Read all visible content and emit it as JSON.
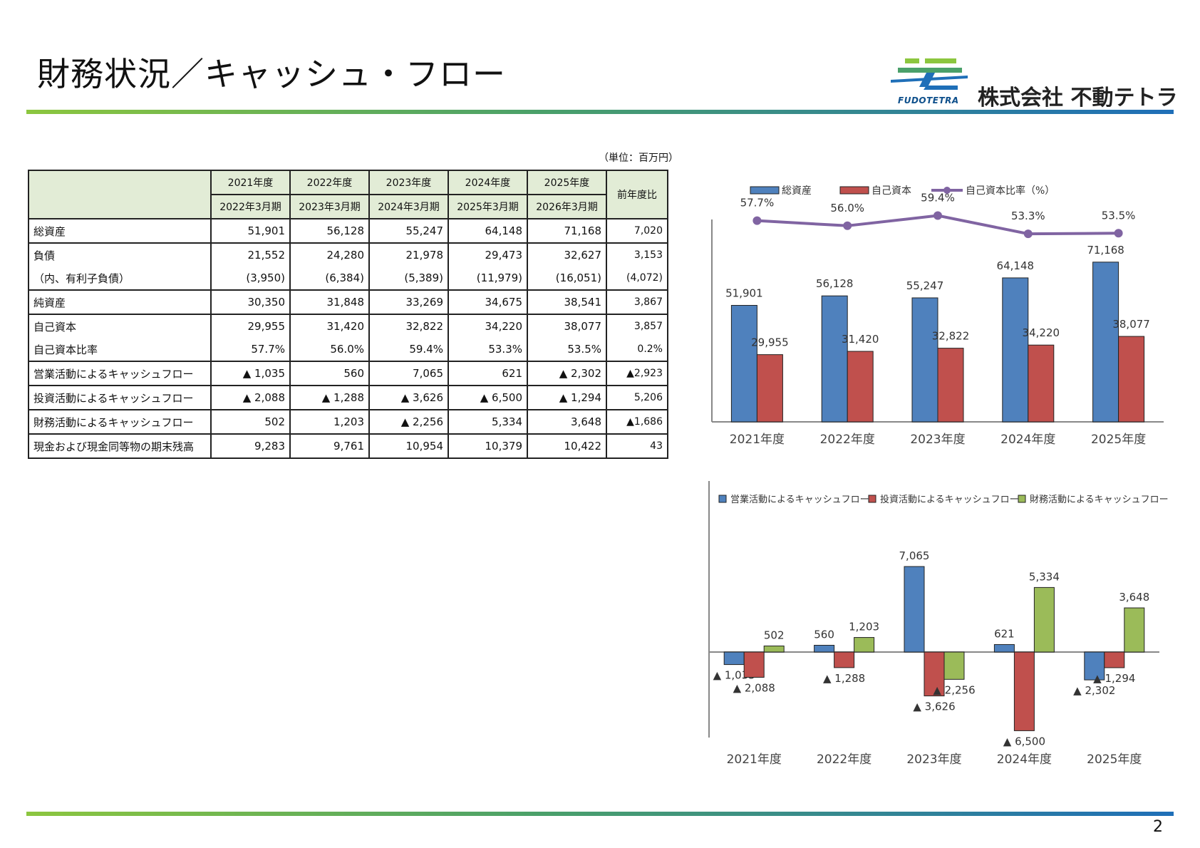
{
  "page": {
    "title": "財務状況／キャッシュ・フロー",
    "page_number": "2",
    "unit": "（単位：百万円）"
  },
  "logo": {
    "brand": "FUDOTETRA",
    "company": "株式会社 不動テトラ",
    "colors": [
      "#8cc63f",
      "#1f6fb8"
    ]
  },
  "table": {
    "header_years": [
      "2021年度",
      "2022年度",
      "2023年度",
      "2024年度",
      "2025年度"
    ],
    "header_periods": [
      "2022年3月期",
      "2023年3月期",
      "2024年3月期",
      "2025年3月期",
      "2026年3月期"
    ],
    "header_compare": "前年度比",
    "rows": [
      {
        "label": "総資産",
        "values": [
          "51,901",
          "56,128",
          "55,247",
          "64,148",
          "71,168"
        ],
        "compare": "7,020"
      },
      {
        "label": "負債",
        "values": [
          "21,552",
          "24,280",
          "21,978",
          "29,473",
          "32,627"
        ],
        "compare": "3,153"
      },
      {
        "label": "（内、有利子負債）",
        "values": [
          "(3,950)",
          "(6,384)",
          "(5,389)",
          "(11,979)",
          "(16,051)"
        ],
        "compare": "(4,072)"
      },
      {
        "label": "純資産",
        "values": [
          "30,350",
          "31,848",
          "33,269",
          "34,675",
          "38,541"
        ],
        "compare": "3,867"
      },
      {
        "label": "自己資本",
        "values": [
          "29,955",
          "31,420",
          "32,822",
          "34,220",
          "38,077"
        ],
        "compare": "3,857"
      },
      {
        "label": "自己資本比率",
        "values": [
          "57.7%",
          "56.0%",
          "59.4%",
          "53.3%",
          "53.5%"
        ],
        "compare": "0.2%"
      },
      {
        "label": "営業活動によるキャッシュフロー",
        "values": [
          "▲ 1,035",
          "560",
          "7,065",
          "621",
          "▲ 2,302"
        ],
        "compare": "▲2,923"
      },
      {
        "label": "投資活動によるキャッシュフロー",
        "values": [
          "▲ 2,088",
          "▲ 1,288",
          "▲ 3,626",
          "▲ 6,500",
          "▲ 1,294"
        ],
        "compare": "5,206"
      },
      {
        "label": "財務活動によるキャッシュフロー",
        "values": [
          "502",
          "1,203",
          "▲ 2,256",
          "5,334",
          "3,648"
        ],
        "compare": "▲1,686"
      },
      {
        "label": "現金および現金同等物の期末残高",
        "values": [
          "9,283",
          "9,761",
          "10,954",
          "10,379",
          "10,422"
        ],
        "compare": "43"
      }
    ]
  },
  "chart_data": [
    {
      "type": "bar",
      "categories": [
        "2021年度",
        "2022年度",
        "2023年度",
        "2024年度",
        "2025年度"
      ],
      "series": [
        {
          "name": "総資産",
          "values": [
            51901,
            56128,
            55247,
            64148,
            71168
          ],
          "labels": [
            "51,901",
            "56,128",
            "55,247",
            "64,148",
            "71,168"
          ],
          "color": "#4f81bd"
        },
        {
          "name": "自己資本",
          "values": [
            29955,
            31420,
            32822,
            34220,
            38077
          ],
          "labels": [
            "29,955",
            "31,420",
            "32,822",
            "34,220",
            "38,077"
          ],
          "color": "#c0504d"
        }
      ],
      "line_series": {
        "name": "自己資本比率（%）",
        "values": [
          57.7,
          56.0,
          59.4,
          53.3,
          53.5
        ],
        "labels": [
          "57.7%",
          "56.0%",
          "59.4%",
          "53.3%",
          "53.5%"
        ],
        "color": "#8064a2"
      },
      "ylim": [
        0,
        80000
      ],
      "legend": "top"
    },
    {
      "type": "bar",
      "categories": [
        "2021年度",
        "2022年度",
        "2023年度",
        "2024年度",
        "2025年度"
      ],
      "series": [
        {
          "name": "営業活動によるキャッシュフロー",
          "values": [
            -1035,
            560,
            7065,
            621,
            -2302
          ],
          "labels": [
            "▲ 1,035",
            "560",
            "7,065",
            "621",
            "▲ 2,302"
          ],
          "color": "#4f81bd"
        },
        {
          "name": "投資活動によるキャッシュフロー",
          "values": [
            -2088,
            -1288,
            -3626,
            -6500,
            -1294
          ],
          "labels": [
            "▲ 2,088",
            "▲ 1,288",
            "▲ 3,626",
            "▲ 6,500",
            "▲ 1,294"
          ],
          "color": "#c0504d"
        },
        {
          "name": "財務活動によるキャッシュフロー",
          "values": [
            502,
            1203,
            -2256,
            5334,
            3648
          ],
          "labels": [
            "502",
            "1,203",
            "▲ 2,256",
            "5,334",
            "3,648"
          ],
          "color": "#9bbb59"
        }
      ],
      "legend": "top"
    }
  ]
}
